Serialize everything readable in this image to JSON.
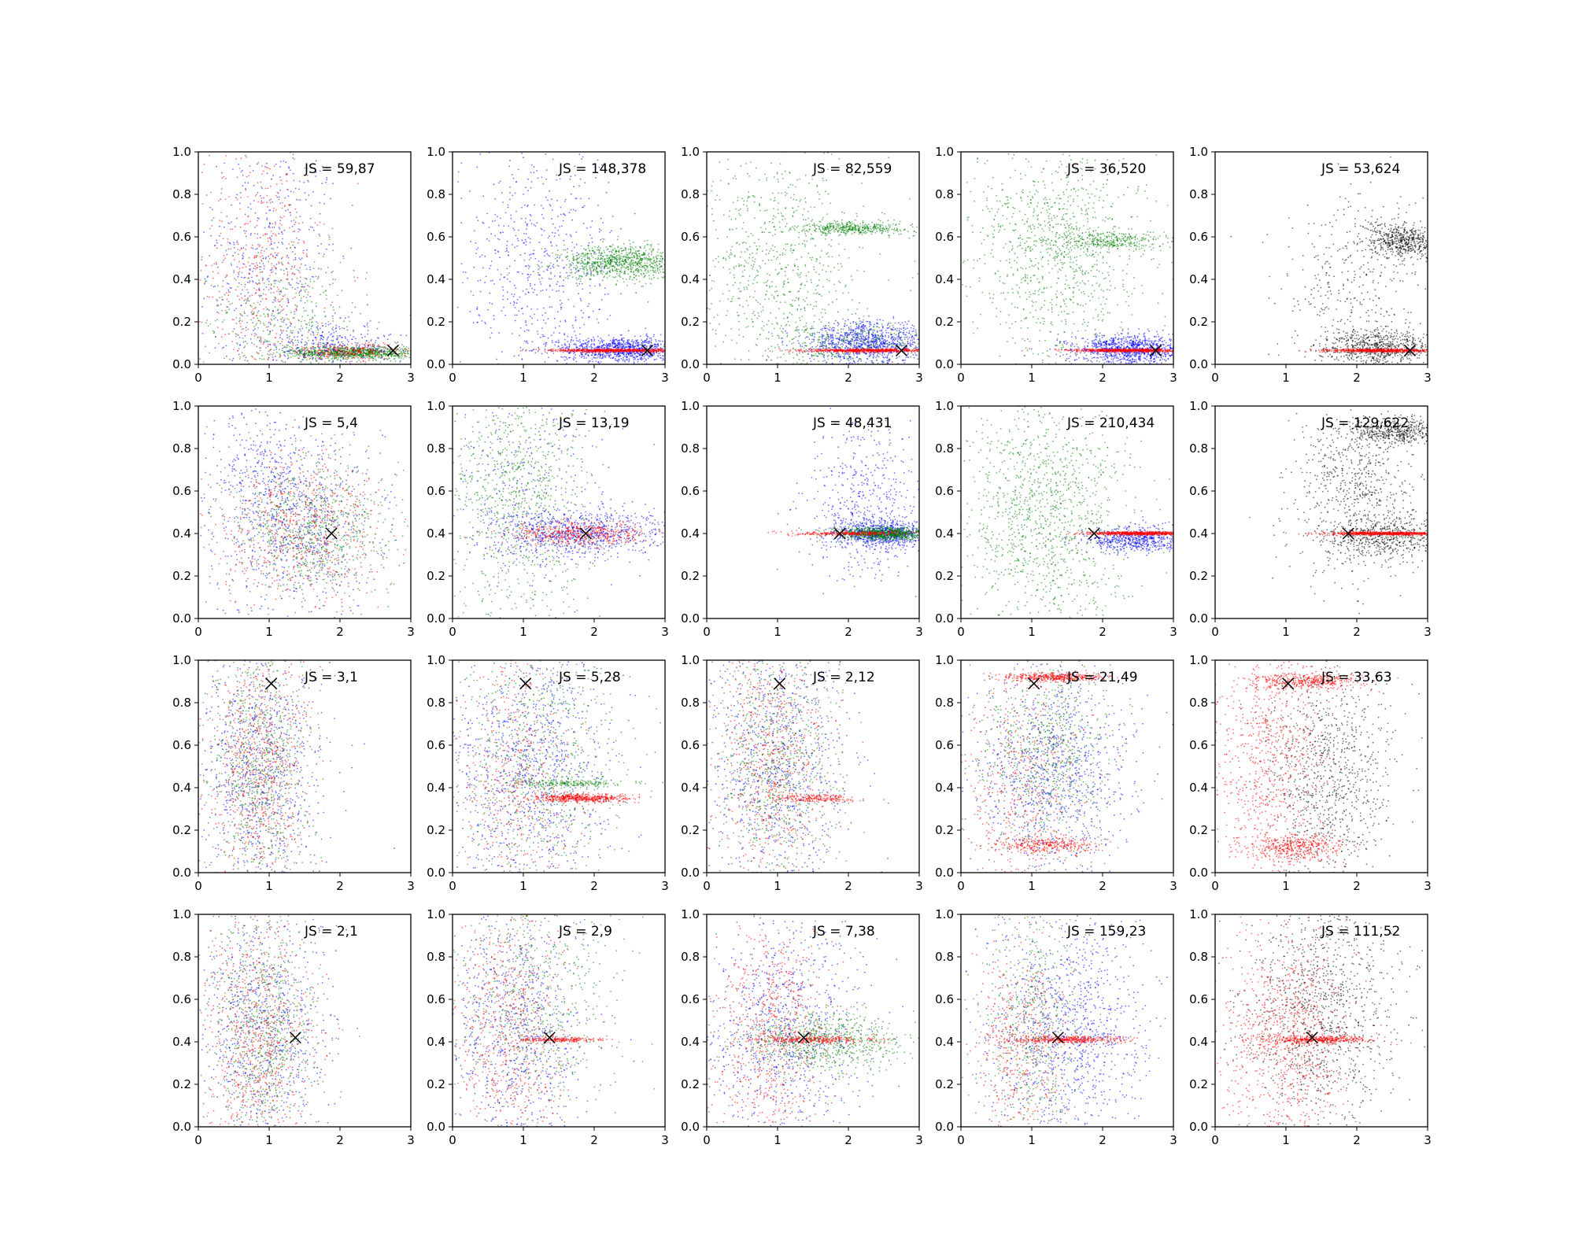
{
  "chart_data": {
    "type": "scatter",
    "layout": "grid 4 rows x 5 columns",
    "xlim": [
      0,
      3
    ],
    "ylim": [
      0,
      1
    ],
    "x_ticks": [
      "0",
      "1",
      "2",
      "3"
    ],
    "y_ticks": [
      "0.0",
      "0.2",
      "0.4",
      "0.6",
      "0.8",
      "1.0"
    ],
    "grid": false,
    "legend": "none",
    "colors": {
      "blue": "#0000ff",
      "green": "#008000",
      "red": "#ff0000",
      "black": "#000000",
      "marker": "#000000"
    },
    "panels": [
      {
        "row": 0,
        "col": 0,
        "annotation": "JS = 59,87",
        "marker": [
          2.75,
          0.065
        ],
        "clusters": [
          {
            "color": "blue",
            "n": 500,
            "cx": 1.0,
            "cy": 0.5,
            "sx": 0.5,
            "sy": 0.3
          },
          {
            "color": "red",
            "n": 500,
            "cx": 0.9,
            "cy": 0.45,
            "sx": 0.45,
            "sy": 0.3
          },
          {
            "color": "green",
            "n": 400,
            "cx": 1.2,
            "cy": 0.2,
            "sx": 0.6,
            "sy": 0.15
          },
          {
            "color": "green",
            "n": 900,
            "cx": 2.2,
            "cy": 0.055,
            "sx": 0.45,
            "sy": 0.015
          },
          {
            "color": "red",
            "n": 300,
            "cx": 2.1,
            "cy": 0.06,
            "sx": 0.5,
            "sy": 0.02
          },
          {
            "color": "blue",
            "n": 300,
            "cx": 1.9,
            "cy": 0.09,
            "sx": 0.6,
            "sy": 0.05
          }
        ]
      },
      {
        "row": 0,
        "col": 1,
        "annotation": "JS = 148,378",
        "marker": [
          2.75,
          0.065
        ],
        "clusters": [
          {
            "color": "blue",
            "n": 700,
            "cx": 1.2,
            "cy": 0.45,
            "sx": 0.6,
            "sy": 0.3
          },
          {
            "color": "green",
            "n": 900,
            "cx": 2.4,
            "cy": 0.48,
            "sx": 0.45,
            "sy": 0.04
          },
          {
            "color": "blue",
            "n": 1000,
            "cx": 2.4,
            "cy": 0.07,
            "sx": 0.45,
            "sy": 0.03
          },
          {
            "color": "red",
            "n": 700,
            "cx": 2.3,
            "cy": 0.065,
            "sx": 0.45,
            "sy": 0.004
          }
        ]
      },
      {
        "row": 0,
        "col": 2,
        "annotation": "JS = 82,559",
        "marker": [
          2.75,
          0.065
        ],
        "clusters": [
          {
            "color": "green",
            "n": 900,
            "cx": 1.0,
            "cy": 0.45,
            "sx": 0.6,
            "sy": 0.3
          },
          {
            "color": "green",
            "n": 400,
            "cx": 2.1,
            "cy": 0.64,
            "sx": 0.4,
            "sy": 0.015
          },
          {
            "color": "blue",
            "n": 1000,
            "cx": 2.3,
            "cy": 0.1,
            "sx": 0.45,
            "sy": 0.05
          },
          {
            "color": "green",
            "n": 300,
            "cx": 2.0,
            "cy": 0.1,
            "sx": 0.5,
            "sy": 0.05
          },
          {
            "color": "red",
            "n": 700,
            "cx": 2.3,
            "cy": 0.065,
            "sx": 0.45,
            "sy": 0.004
          }
        ]
      },
      {
        "row": 0,
        "col": 3,
        "annotation": "JS = 36,520",
        "marker": [
          2.75,
          0.065
        ],
        "clusters": [
          {
            "color": "green",
            "n": 1100,
            "cx": 1.4,
            "cy": 0.55,
            "sx": 0.6,
            "sy": 0.28
          },
          {
            "color": "green",
            "n": 300,
            "cx": 2.1,
            "cy": 0.58,
            "sx": 0.4,
            "sy": 0.02
          },
          {
            "color": "blue",
            "n": 1000,
            "cx": 2.4,
            "cy": 0.07,
            "sx": 0.4,
            "sy": 0.035
          },
          {
            "color": "red",
            "n": 700,
            "cx": 2.35,
            "cy": 0.065,
            "sx": 0.4,
            "sy": 0.004
          }
        ]
      },
      {
        "row": 0,
        "col": 4,
        "annotation": "JS = 53,624",
        "marker": [
          2.75,
          0.065
        ],
        "clusters": [
          {
            "color": "black",
            "n": 400,
            "cx": 2.0,
            "cy": 0.35,
            "sx": 0.5,
            "sy": 0.25
          },
          {
            "color": "black",
            "n": 600,
            "cx": 2.7,
            "cy": 0.58,
            "sx": 0.3,
            "sy": 0.04
          },
          {
            "color": "black",
            "n": 700,
            "cx": 2.3,
            "cy": 0.08,
            "sx": 0.4,
            "sy": 0.04
          },
          {
            "color": "red",
            "n": 600,
            "cx": 2.35,
            "cy": 0.065,
            "sx": 0.4,
            "sy": 0.004
          }
        ]
      },
      {
        "row": 1,
        "col": 0,
        "annotation": "JS = 5,4",
        "marker": [
          1.88,
          0.4
        ],
        "clusters": [
          {
            "color": "blue",
            "n": 800,
            "cx": 1.4,
            "cy": 0.45,
            "sx": 0.6,
            "sy": 0.2
          },
          {
            "color": "red",
            "n": 700,
            "cx": 1.4,
            "cy": 0.42,
            "sx": 0.6,
            "sy": 0.18
          },
          {
            "color": "green",
            "n": 700,
            "cx": 1.6,
            "cy": 0.43,
            "sx": 0.55,
            "sy": 0.16
          },
          {
            "color": "blue",
            "n": 200,
            "cx": 0.8,
            "cy": 0.75,
            "sx": 0.4,
            "sy": 0.15
          }
        ]
      },
      {
        "row": 1,
        "col": 1,
        "annotation": "JS = 13,19",
        "marker": [
          1.88,
          0.4
        ],
        "clusters": [
          {
            "color": "green",
            "n": 900,
            "cx": 0.9,
            "cy": 0.55,
            "sx": 0.5,
            "sy": 0.3
          },
          {
            "color": "blue",
            "n": 800,
            "cx": 1.8,
            "cy": 0.4,
            "sx": 0.6,
            "sy": 0.06
          },
          {
            "color": "red",
            "n": 500,
            "cx": 1.8,
            "cy": 0.4,
            "sx": 0.5,
            "sy": 0.03
          },
          {
            "color": "blue",
            "n": 300,
            "cx": 1.0,
            "cy": 0.6,
            "sx": 0.5,
            "sy": 0.25
          }
        ]
      },
      {
        "row": 1,
        "col": 2,
        "annotation": "JS = 48,431",
        "marker": [
          1.88,
          0.4
        ],
        "clusters": [
          {
            "color": "blue",
            "n": 500,
            "cx": 2.2,
            "cy": 0.55,
            "sx": 0.4,
            "sy": 0.18
          },
          {
            "color": "blue",
            "n": 800,
            "cx": 2.5,
            "cy": 0.4,
            "sx": 0.35,
            "sy": 0.03
          },
          {
            "color": "green",
            "n": 800,
            "cx": 2.5,
            "cy": 0.4,
            "sx": 0.3,
            "sy": 0.015
          },
          {
            "color": "red",
            "n": 300,
            "cx": 2.0,
            "cy": 0.4,
            "sx": 0.4,
            "sy": 0.005
          }
        ]
      },
      {
        "row": 1,
        "col": 3,
        "annotation": "JS = 210,434",
        "marker": [
          1.88,
          0.4
        ],
        "clusters": [
          {
            "color": "green",
            "n": 1300,
            "cx": 1.2,
            "cy": 0.5,
            "sx": 0.6,
            "sy": 0.3
          },
          {
            "color": "blue",
            "n": 600,
            "cx": 2.5,
            "cy": 0.37,
            "sx": 0.35,
            "sy": 0.03
          },
          {
            "color": "red",
            "n": 700,
            "cx": 2.5,
            "cy": 0.4,
            "sx": 0.35,
            "sy": 0.004
          }
        ]
      },
      {
        "row": 1,
        "col": 4,
        "annotation": "JS = 129,622",
        "marker": [
          1.88,
          0.4
        ],
        "clusters": [
          {
            "color": "black",
            "n": 500,
            "cx": 2.6,
            "cy": 0.88,
            "sx": 0.35,
            "sy": 0.03
          },
          {
            "color": "black",
            "n": 700,
            "cx": 2.0,
            "cy": 0.6,
            "sx": 0.45,
            "sy": 0.2
          },
          {
            "color": "black",
            "n": 500,
            "cx": 2.4,
            "cy": 0.38,
            "sx": 0.4,
            "sy": 0.05
          },
          {
            "color": "red",
            "n": 700,
            "cx": 2.4,
            "cy": 0.4,
            "sx": 0.4,
            "sy": 0.004
          }
        ]
      },
      {
        "row": 2,
        "col": 0,
        "annotation": "JS = 3,1",
        "marker": [
          1.03,
          0.89
        ],
        "clusters": [
          {
            "color": "blue",
            "n": 900,
            "cx": 0.9,
            "cy": 0.5,
            "sx": 0.45,
            "sy": 0.3
          },
          {
            "color": "red",
            "n": 800,
            "cx": 0.85,
            "cy": 0.5,
            "sx": 0.35,
            "sy": 0.3
          },
          {
            "color": "green",
            "n": 700,
            "cx": 0.85,
            "cy": 0.5,
            "sx": 0.35,
            "sy": 0.3
          }
        ]
      },
      {
        "row": 2,
        "col": 1,
        "annotation": "JS = 5,28",
        "marker": [
          1.03,
          0.89
        ],
        "clusters": [
          {
            "color": "blue",
            "n": 1000,
            "cx": 1.1,
            "cy": 0.5,
            "sx": 0.55,
            "sy": 0.3
          },
          {
            "color": "green",
            "n": 700,
            "cx": 1.3,
            "cy": 0.55,
            "sx": 0.6,
            "sy": 0.3
          },
          {
            "color": "red",
            "n": 500,
            "cx": 0.9,
            "cy": 0.45,
            "sx": 0.4,
            "sy": 0.3
          },
          {
            "color": "red",
            "n": 500,
            "cx": 1.8,
            "cy": 0.35,
            "sx": 0.35,
            "sy": 0.01
          },
          {
            "color": "green",
            "n": 200,
            "cx": 1.6,
            "cy": 0.42,
            "sx": 0.4,
            "sy": 0.01
          }
        ]
      },
      {
        "row": 2,
        "col": 2,
        "annotation": "JS = 2,12",
        "marker": [
          1.03,
          0.89
        ],
        "clusters": [
          {
            "color": "blue",
            "n": 900,
            "cx": 1.0,
            "cy": 0.5,
            "sx": 0.5,
            "sy": 0.3
          },
          {
            "color": "red",
            "n": 700,
            "cx": 0.9,
            "cy": 0.5,
            "sx": 0.4,
            "sy": 0.3
          },
          {
            "color": "green",
            "n": 700,
            "cx": 1.0,
            "cy": 0.5,
            "sx": 0.45,
            "sy": 0.3
          },
          {
            "color": "red",
            "n": 200,
            "cx": 1.5,
            "cy": 0.35,
            "sx": 0.3,
            "sy": 0.01
          }
        ]
      },
      {
        "row": 2,
        "col": 3,
        "annotation": "JS = 21,49",
        "marker": [
          1.03,
          0.89
        ],
        "clusters": [
          {
            "color": "blue",
            "n": 1000,
            "cx": 1.3,
            "cy": 0.45,
            "sx": 0.55,
            "sy": 0.25
          },
          {
            "color": "green",
            "n": 700,
            "cx": 1.2,
            "cy": 0.55,
            "sx": 0.5,
            "sy": 0.25
          },
          {
            "color": "red",
            "n": 500,
            "cx": 0.9,
            "cy": 0.4,
            "sx": 0.4,
            "sy": 0.3
          },
          {
            "color": "red",
            "n": 400,
            "cx": 1.3,
            "cy": 0.92,
            "sx": 0.35,
            "sy": 0.01
          },
          {
            "color": "red",
            "n": 300,
            "cx": 1.2,
            "cy": 0.13,
            "sx": 0.35,
            "sy": 0.02
          }
        ]
      },
      {
        "row": 2,
        "col": 4,
        "annotation": "JS = 33,63",
        "marker": [
          1.03,
          0.89
        ],
        "clusters": [
          {
            "color": "black",
            "n": 900,
            "cx": 1.6,
            "cy": 0.45,
            "sx": 0.45,
            "sy": 0.25
          },
          {
            "color": "red",
            "n": 800,
            "cx": 0.8,
            "cy": 0.5,
            "sx": 0.4,
            "sy": 0.3
          },
          {
            "color": "red",
            "n": 400,
            "cx": 1.3,
            "cy": 0.9,
            "sx": 0.4,
            "sy": 0.02
          },
          {
            "color": "red",
            "n": 400,
            "cx": 1.1,
            "cy": 0.12,
            "sx": 0.35,
            "sy": 0.03
          }
        ]
      },
      {
        "row": 3,
        "col": 0,
        "annotation": "JS = 2,1",
        "marker": [
          1.37,
          0.42
        ],
        "clusters": [
          {
            "color": "blue",
            "n": 800,
            "cx": 0.9,
            "cy": 0.45,
            "sx": 0.45,
            "sy": 0.28
          },
          {
            "color": "red",
            "n": 800,
            "cx": 0.85,
            "cy": 0.4,
            "sx": 0.4,
            "sy": 0.28
          },
          {
            "color": "green",
            "n": 700,
            "cx": 0.9,
            "cy": 0.45,
            "sx": 0.4,
            "sy": 0.28
          }
        ]
      },
      {
        "row": 3,
        "col": 1,
        "annotation": "JS = 2,9",
        "marker": [
          1.37,
          0.42
        ],
        "clusters": [
          {
            "color": "blue",
            "n": 800,
            "cx": 0.9,
            "cy": 0.45,
            "sx": 0.45,
            "sy": 0.3
          },
          {
            "color": "red",
            "n": 700,
            "cx": 0.8,
            "cy": 0.45,
            "sx": 0.4,
            "sy": 0.3
          },
          {
            "color": "green",
            "n": 600,
            "cx": 1.2,
            "cy": 0.6,
            "sx": 0.6,
            "sy": 0.28
          },
          {
            "color": "red",
            "n": 200,
            "cx": 1.5,
            "cy": 0.41,
            "sx": 0.3,
            "sy": 0.005
          }
        ]
      },
      {
        "row": 3,
        "col": 2,
        "annotation": "JS = 7,38",
        "marker": [
          1.37,
          0.42
        ],
        "clusters": [
          {
            "color": "blue",
            "n": 900,
            "cx": 1.1,
            "cy": 0.45,
            "sx": 0.55,
            "sy": 0.28
          },
          {
            "color": "red",
            "n": 700,
            "cx": 0.9,
            "cy": 0.45,
            "sx": 0.4,
            "sy": 0.28
          },
          {
            "color": "green",
            "n": 700,
            "cx": 1.7,
            "cy": 0.4,
            "sx": 0.55,
            "sy": 0.07
          },
          {
            "color": "red",
            "n": 300,
            "cx": 1.5,
            "cy": 0.41,
            "sx": 0.4,
            "sy": 0.01
          }
        ]
      },
      {
        "row": 3,
        "col": 3,
        "annotation": "JS = 159,23",
        "marker": [
          1.37,
          0.42
        ],
        "clusters": [
          {
            "color": "blue",
            "n": 1100,
            "cx": 1.5,
            "cy": 0.45,
            "sx": 0.55,
            "sy": 0.28
          },
          {
            "color": "green",
            "n": 500,
            "cx": 1.0,
            "cy": 0.5,
            "sx": 0.35,
            "sy": 0.3
          },
          {
            "color": "red",
            "n": 500,
            "cx": 0.8,
            "cy": 0.4,
            "sx": 0.35,
            "sy": 0.25
          },
          {
            "color": "red",
            "n": 400,
            "cx": 1.5,
            "cy": 0.41,
            "sx": 0.4,
            "sy": 0.01
          }
        ]
      },
      {
        "row": 3,
        "col": 4,
        "annotation": "JS = 111,52",
        "marker": [
          1.37,
          0.42
        ],
        "clusters": [
          {
            "color": "black",
            "n": 1100,
            "cx": 1.5,
            "cy": 0.55,
            "sx": 0.55,
            "sy": 0.28
          },
          {
            "color": "red",
            "n": 900,
            "cx": 1.0,
            "cy": 0.42,
            "sx": 0.45,
            "sy": 0.25
          },
          {
            "color": "red",
            "n": 400,
            "cx": 1.5,
            "cy": 0.41,
            "sx": 0.4,
            "sy": 0.01
          }
        ]
      }
    ]
  }
}
